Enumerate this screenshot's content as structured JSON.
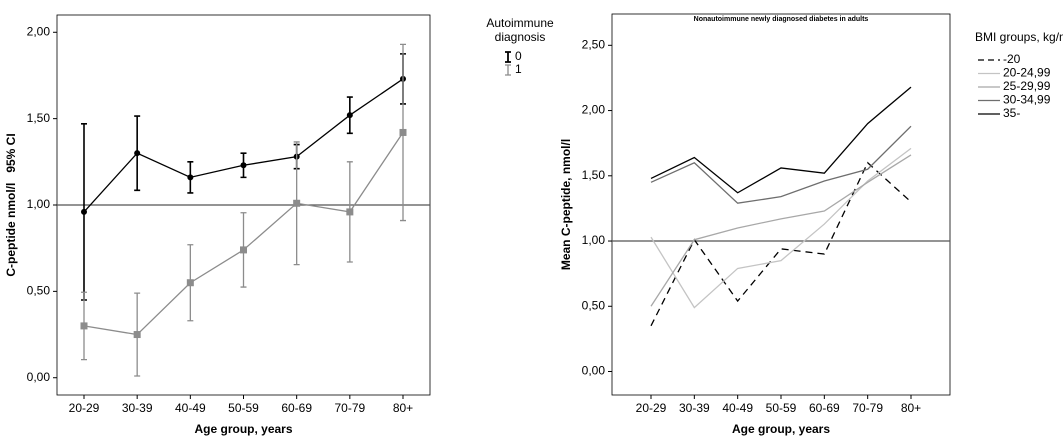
{
  "chart_data": [
    {
      "type": "line",
      "x_label": "Age group,  years",
      "y_label": "C-peptide nmol/l   95% CI",
      "legend_title": "Autoimmune diagnosis",
      "categories": [
        "20-29",
        "30-39",
        "40-49",
        "50-59",
        "60-69",
        "70-79",
        "80+"
      ],
      "series": [
        {
          "name": "0",
          "color": "#000000",
          "marker": "circle",
          "values": [
            0.96,
            1.3,
            1.16,
            1.23,
            1.28,
            1.52,
            1.73
          ],
          "errors": [
            0.51,
            0.215,
            0.09,
            0.07,
            0.07,
            0.105,
            0.145
          ]
        },
        {
          "name": "1",
          "color": "#8c8c8c",
          "marker": "square",
          "values": [
            0.3,
            0.25,
            0.55,
            0.74,
            1.01,
            0.96,
            1.42
          ],
          "errors": [
            0.195,
            0.24,
            0.22,
            0.215,
            0.355,
            0.29,
            0.51
          ]
        }
      ],
      "ylim": [
        -0.1,
        2.1
      ],
      "yticks": [
        {
          "value": 0,
          "label": "0,00"
        },
        {
          "value": 0.5,
          "label": "0,50"
        },
        {
          "value": 1,
          "label": "1,00"
        },
        {
          "value": 1.5,
          "label": "1,50"
        },
        {
          "value": 2,
          "label": "2,00"
        }
      ],
      "refline": 1
    },
    {
      "type": "line",
      "title": "Nonautoimmune newly diagnosed diabetes in adults",
      "x_label": "Age group, years",
      "y_label": "Mean C-peptide, nmol/l",
      "legend_title": "BMI groups, kg/m",
      "categories": [
        "20-29",
        "30-39",
        "40-49",
        "50-59",
        "60-69",
        "70-79",
        "80+"
      ],
      "series": [
        {
          "name": "-20",
          "color": "#000000",
          "dash": "dashed",
          "values": [
            0.35,
            1.01,
            0.54,
            0.94,
            0.9,
            1.6,
            1.3
          ]
        },
        {
          "name": "20-24,99",
          "color": "#c4c4c4",
          "values": [
            1.03,
            0.49,
            0.79,
            0.85,
            1.13,
            1.46,
            1.71
          ]
        },
        {
          "name": "25-29,99",
          "color": "#a8a8a8",
          "values": [
            0.5,
            1.01,
            1.1,
            1.17,
            1.23,
            1.45,
            1.66
          ]
        },
        {
          "name": "30-34,99",
          "color": "#6e6e6e",
          "values": [
            1.45,
            1.6,
            1.29,
            1.34,
            1.46,
            1.55,
            1.88
          ]
        },
        {
          "name": "35-",
          "color": "#000000",
          "values": [
            1.48,
            1.64,
            1.37,
            1.56,
            1.52,
            1.9,
            2.18
          ]
        }
      ],
      "ylim": [
        -0.18,
        2.74
      ],
      "yticks": [
        {
          "value": 0,
          "label": "0,00"
        },
        {
          "value": 0.5,
          "label": "0,50"
        },
        {
          "value": 1,
          "label": "1,00"
        },
        {
          "value": 1.5,
          "label": "1,50"
        },
        {
          "value": 2,
          "label": "2,00"
        },
        {
          "value": 2.5,
          "label": "2,50"
        }
      ],
      "refline": 1
    }
  ]
}
